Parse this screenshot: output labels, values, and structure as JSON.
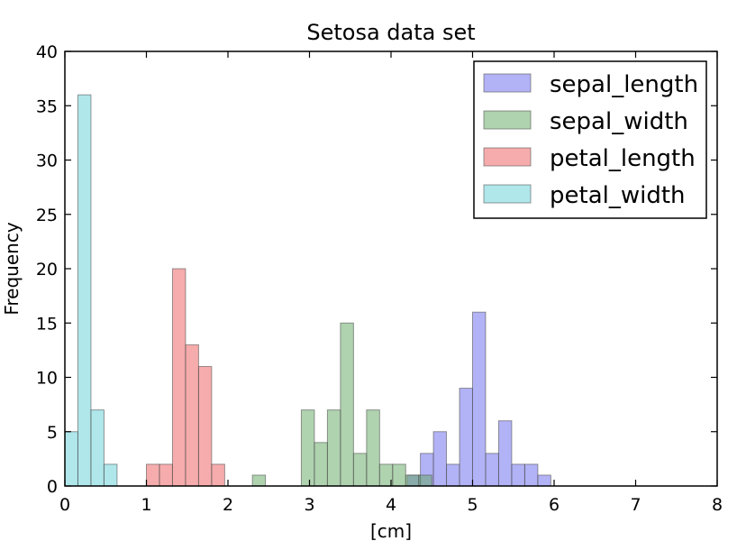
{
  "chart_data": {
    "type": "bar",
    "title": "Setosa data set",
    "xlabel": "[cm]",
    "ylabel": "Frequency",
    "xlim": [
      0,
      8
    ],
    "ylim": [
      0,
      40
    ],
    "xticks": [
      "0",
      "1",
      "2",
      "3",
      "4",
      "5",
      "6",
      "7",
      "8"
    ],
    "yticks": [
      "0",
      "5",
      "10",
      "15",
      "20",
      "25",
      "30",
      "35",
      "40"
    ],
    "grid": false,
    "legend_position": "top-right",
    "bar_width": 0.16,
    "series": [
      {
        "name": "sepal_length",
        "color": "#6666ee",
        "bins": [
          {
            "x": 4.2,
            "count": 1
          },
          {
            "x": 4.36,
            "count": 3
          },
          {
            "x": 4.52,
            "count": 5
          },
          {
            "x": 4.68,
            "count": 2
          },
          {
            "x": 4.84,
            "count": 9
          },
          {
            "x": 5.0,
            "count": 16
          },
          {
            "x": 5.16,
            "count": 3
          },
          {
            "x": 5.32,
            "count": 6
          },
          {
            "x": 5.48,
            "count": 2
          },
          {
            "x": 5.64,
            "count": 2
          },
          {
            "x": 5.8,
            "count": 1
          }
        ]
      },
      {
        "name": "sepal_width",
        "color": "#5fa65f",
        "bins": [
          {
            "x": 2.3,
            "count": 1
          },
          {
            "x": 2.9,
            "count": 7
          },
          {
            "x": 3.06,
            "count": 4
          },
          {
            "x": 3.22,
            "count": 7
          },
          {
            "x": 3.38,
            "count": 15
          },
          {
            "x": 3.54,
            "count": 3
          },
          {
            "x": 3.7,
            "count": 7
          },
          {
            "x": 3.86,
            "count": 2
          },
          {
            "x": 4.02,
            "count": 2
          },
          {
            "x": 4.18,
            "count": 1
          },
          {
            "x": 4.34,
            "count": 1
          }
        ]
      },
      {
        "name": "petal_length",
        "color": "#ee5a5a",
        "bins": [
          {
            "x": 1.0,
            "count": 2
          },
          {
            "x": 1.16,
            "count": 2
          },
          {
            "x": 1.32,
            "count": 20
          },
          {
            "x": 1.48,
            "count": 13
          },
          {
            "x": 1.64,
            "count": 11
          },
          {
            "x": 1.8,
            "count": 2
          }
        ]
      },
      {
        "name": "petal_width",
        "color": "#5fd0d8",
        "bins": [
          {
            "x": 0.0,
            "count": 5
          },
          {
            "x": 0.16,
            "count": 36
          },
          {
            "x": 0.32,
            "count": 7
          },
          {
            "x": 0.48,
            "count": 2
          }
        ]
      }
    ]
  }
}
